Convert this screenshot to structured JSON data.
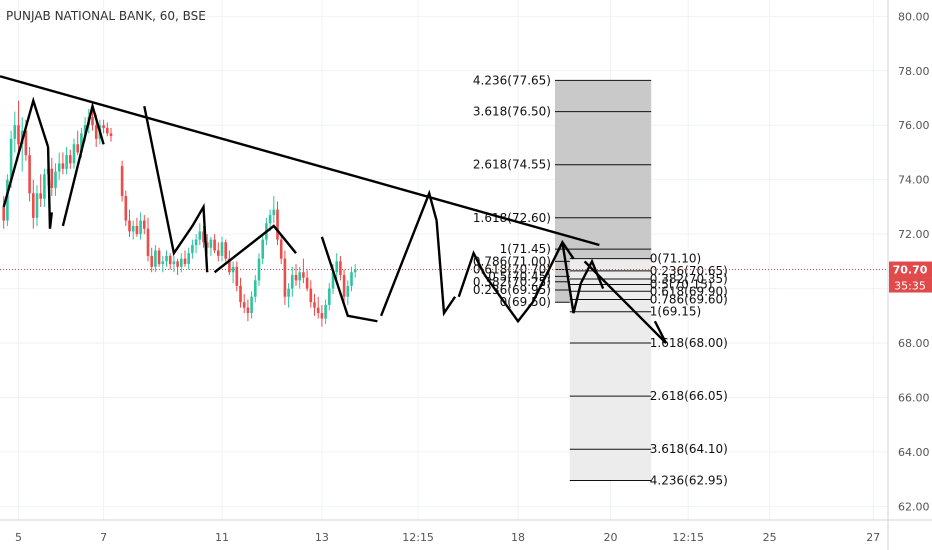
{
  "chart_data": {
    "type": "candlestick",
    "title": "PUNJAB NATIONAL BANK, 60, BSE",
    "ylim": [
      61.5,
      80.6
    ],
    "y_ticks": [
      62,
      64,
      66,
      68,
      70,
      72,
      74,
      76,
      78,
      80
    ],
    "y_tick_labels": [
      "62.00",
      "64.00",
      "66.00",
      "68.00",
      "70.00",
      "72.00",
      "74.00",
      "76.00",
      "78.00",
      "80.00"
    ],
    "x_tick_labels": [
      "5",
      "7",
      "11",
      "13",
      "12:15",
      "18",
      "20",
      "12:15",
      "25",
      "27"
    ],
    "x_tick_positions": [
      5,
      28,
      60,
      87,
      113,
      140,
      165,
      186,
      208,
      236
    ],
    "xlim": [
      0,
      240
    ],
    "last_price": {
      "value": 70.7,
      "label": "70.70",
      "color": "#e04a4a"
    },
    "countdown": {
      "label": "35:35",
      "color": "#e04a4a"
    },
    "up_color": "#2ec4a0",
    "down_color": "#ee4b4b",
    "candles": [
      [
        1,
        73.0,
        73.4,
        72.2,
        72.5
      ],
      [
        2,
        72.5,
        74.2,
        72.3,
        74.0
      ],
      [
        3,
        74.0,
        75.8,
        73.7,
        75.5
      ],
      [
        4,
        75.5,
        76.5,
        75.0,
        76.0
      ],
      [
        5,
        76.0,
        76.9,
        75.0,
        75.3
      ],
      [
        6,
        75.3,
        76.3,
        74.3,
        75.8
      ],
      [
        7,
        75.8,
        76.2,
        74.7,
        74.9
      ],
      [
        8,
        74.9,
        75.2,
        73.2,
        73.5
      ],
      [
        9,
        73.5,
        74.0,
        72.2,
        72.6
      ],
      [
        10,
        72.6,
        73.8,
        72.3,
        73.5
      ],
      [
        11,
        73.5,
        74.2,
        73.0,
        73.3
      ],
      [
        12,
        73.3,
        74.4,
        73.0,
        74.2
      ],
      [
        13,
        74.2,
        74.9,
        73.8,
        74.4
      ],
      [
        14,
        74.4,
        74.8,
        73.4,
        73.7
      ],
      [
        15,
        73.7,
        74.6,
        73.4,
        74.3
      ],
      [
        16,
        74.3,
        75.0,
        74.0,
        74.6
      ],
      [
        17,
        74.6,
        75.0,
        74.2,
        74.4
      ],
      [
        18,
        74.4,
        75.2,
        74.2,
        74.9
      ],
      [
        19,
        74.9,
        75.1,
        74.4,
        74.6
      ],
      [
        20,
        74.6,
        75.5,
        74.4,
        75.3
      ],
      [
        21,
        75.3,
        75.8,
        74.9,
        75.0
      ],
      [
        22,
        75.0,
        75.9,
        74.8,
        75.7
      ],
      [
        23,
        75.7,
        76.3,
        75.4,
        76.0
      ],
      [
        24,
        76.0,
        76.6,
        75.7,
        76.3
      ],
      [
        25,
        76.3,
        76.7,
        75.8,
        76.0
      ],
      [
        26,
        76.0,
        76.4,
        75.2,
        75.5
      ],
      [
        27,
        75.5,
        76.2,
        75.3,
        76.0
      ],
      [
        28,
        76.0,
        76.2,
        75.7,
        75.9
      ],
      [
        29,
        75.9,
        76.1,
        75.6,
        75.7
      ],
      [
        30,
        75.7,
        75.9,
        75.4,
        75.6
      ],
      [
        33,
        74.5,
        74.7,
        73.2,
        73.4
      ],
      [
        34,
        73.4,
        73.6,
        72.3,
        72.5
      ],
      [
        35,
        72.5,
        72.9,
        71.9,
        72.1
      ],
      [
        36,
        72.1,
        72.5,
        71.8,
        72.3
      ],
      [
        37,
        72.3,
        72.6,
        71.9,
        72.0
      ],
      [
        38,
        72.0,
        72.8,
        71.8,
        72.5
      ],
      [
        39,
        72.5,
        72.7,
        72.0,
        72.2
      ],
      [
        40,
        72.2,
        72.6,
        71.0,
        71.2
      ],
      [
        41,
        71.2,
        71.5,
        70.6,
        70.8
      ],
      [
        42,
        70.8,
        71.6,
        70.6,
        71.4
      ],
      [
        43,
        71.4,
        71.5,
        70.8,
        70.9
      ],
      [
        44,
        70.9,
        71.2,
        70.6,
        71.0
      ],
      [
        45,
        71.0,
        71.4,
        70.8,
        71.2
      ],
      [
        46,
        71.2,
        71.3,
        70.7,
        70.9
      ],
      [
        47,
        70.9,
        71.2,
        70.6,
        71.0
      ],
      [
        48,
        71.0,
        71.1,
        70.5,
        70.8
      ],
      [
        49,
        70.8,
        71.3,
        70.6,
        71.1
      ],
      [
        50,
        71.1,
        71.4,
        70.8,
        70.9
      ],
      [
        51,
        70.9,
        71.5,
        70.7,
        71.3
      ],
      [
        52,
        71.3,
        71.8,
        71.1,
        71.6
      ],
      [
        53,
        71.6,
        72.0,
        71.3,
        71.8
      ],
      [
        54,
        71.8,
        72.4,
        71.6,
        72.1
      ],
      [
        55,
        72.1,
        72.3,
        71.5,
        71.7
      ],
      [
        56,
        71.7,
        72.0,
        71.3,
        71.5
      ],
      [
        57,
        71.5,
        71.9,
        71.2,
        71.8
      ],
      [
        58,
        71.8,
        72.0,
        71.3,
        71.4
      ],
      [
        59,
        71.4,
        71.7,
        71.0,
        71.2
      ],
      [
        60,
        71.2,
        71.9,
        71.0,
        71.7
      ],
      [
        61,
        71.7,
        71.8,
        71.0,
        71.1
      ],
      [
        62,
        71.1,
        71.4,
        70.5,
        70.6
      ],
      [
        63,
        70.6,
        71.0,
        70.2,
        70.8
      ],
      [
        64,
        70.8,
        71.0,
        69.9,
        70.1
      ],
      [
        65,
        70.1,
        70.4,
        69.3,
        69.5
      ],
      [
        66,
        69.5,
        69.8,
        69.1,
        69.3
      ],
      [
        67,
        69.3,
        69.6,
        68.8,
        69.1
      ],
      [
        68,
        69.1,
        69.9,
        68.9,
        69.7
      ],
      [
        69,
        69.7,
        70.5,
        69.5,
        70.3
      ],
      [
        70,
        70.3,
        71.3,
        70.1,
        71.1
      ],
      [
        71,
        71.1,
        72.0,
        70.9,
        71.8
      ],
      [
        72,
        71.8,
        72.6,
        71.6,
        72.4
      ],
      [
        73,
        72.4,
        72.9,
        72.1,
        72.7
      ],
      [
        74,
        72.7,
        73.4,
        72.4,
        72.9
      ],
      [
        75,
        72.9,
        73.2,
        71.6,
        71.8
      ],
      [
        76,
        71.8,
        72.0,
        70.9,
        71.1
      ],
      [
        77,
        71.1,
        71.4,
        69.4,
        69.7
      ],
      [
        78,
        69.7,
        70.2,
        69.3,
        70.0
      ],
      [
        79,
        70.0,
        70.8,
        69.7,
        70.5
      ],
      [
        80,
        70.5,
        70.9,
        70.1,
        70.3
      ],
      [
        81,
        70.3,
        70.8,
        70.0,
        70.6
      ],
      [
        82,
        70.6,
        71.1,
        70.2,
        70.4
      ],
      [
        83,
        70.4,
        70.7,
        69.9,
        70.0
      ],
      [
        84,
        70.0,
        70.3,
        69.3,
        69.5
      ],
      [
        85,
        69.5,
        69.8,
        69.0,
        69.3
      ],
      [
        86,
        69.3,
        69.7,
        68.9,
        69.1
      ],
      [
        87,
        69.1,
        69.4,
        68.6,
        68.9
      ],
      [
        88,
        68.9,
        69.6,
        68.7,
        69.4
      ],
      [
        89,
        69.4,
        70.2,
        69.2,
        70.0
      ],
      [
        90,
        70.0,
        70.9,
        69.8,
        70.6
      ],
      [
        91,
        70.6,
        71.3,
        70.3,
        71.0
      ],
      [
        92,
        71.0,
        71.2,
        70.3,
        70.5
      ],
      [
        93,
        70.5,
        70.7,
        69.5,
        69.7
      ],
      [
        94,
        69.7,
        70.3,
        69.4,
        70.1
      ],
      [
        95,
        70.1,
        70.8,
        69.9,
        70.6
      ],
      [
        96,
        70.6,
        70.9,
        70.4,
        70.7
      ]
    ],
    "trendline": [
      [
        0,
        77.8
      ],
      [
        162,
        71.6
      ]
    ],
    "zigzag": [
      [
        [
          1,
          73.0
        ],
        [
          9,
          76.9
        ],
        [
          13,
          75.2
        ]
      ],
      [
        [
          13,
          75.2
        ],
        [
          13.5,
          72.2
        ],
        [
          14,
          72.8
        ]
      ],
      [
        [
          17,
          72.3
        ],
        [
          25,
          76.7
        ],
        [
          28,
          75.3
        ]
      ],
      [
        [
          39,
          76.7
        ],
        [
          47,
          71.3
        ],
        [
          52,
          72.3
        ]
      ],
      [
        [
          52,
          72.3
        ],
        [
          55,
          73.0
        ],
        [
          56,
          70.6
        ]
      ],
      [
        [
          58,
          70.6
        ],
        [
          74,
          72.3
        ],
        [
          80,
          71.3
        ]
      ],
      [
        [
          87,
          71.9
        ],
        [
          94,
          69.0
        ],
        [
          102,
          68.8
        ]
      ],
      [
        [
          103,
          69.0
        ],
        [
          116,
          73.5
        ],
        [
          118,
          72.5
        ]
      ],
      [
        [
          118,
          72.5
        ],
        [
          120,
          69.1
        ],
        [
          123,
          69.7
        ]
      ],
      [
        [
          124,
          69.7
        ],
        [
          128,
          71.3
        ],
        [
          131,
          70.5
        ]
      ],
      [
        [
          131,
          70.5
        ],
        [
          140,
          68.8
        ],
        [
          144,
          69.5
        ]
      ],
      [
        [
          144,
          69.5
        ],
        [
          152,
          71.7
        ],
        [
          155,
          71.1
        ]
      ],
      [
        [
          152,
          71.7
        ],
        [
          155,
          69.1
        ],
        [
          157,
          70.2
        ]
      ],
      [
        [
          157,
          70.2
        ],
        [
          160,
          71.0
        ],
        [
          163,
          70.0
        ]
      ],
      [
        [
          158,
          71.0
        ],
        [
          180,
          68.0
        ],
        [
          177,
          68.8
        ]
      ]
    ],
    "fib_upper": {
      "box_x": [
        150,
        176
      ],
      "levels": [
        {
          "label": "4.236(77.65)",
          "value": 77.65
        },
        {
          "label": "3.618(76.50)",
          "value": 76.5
        },
        {
          "label": "2.618(74.55)",
          "value": 74.55
        },
        {
          "label": "1.618(72.60)",
          "value": 72.6
        },
        {
          "label": "1(71.45)",
          "value": 71.45
        },
        {
          "label": "0.786(71.00)",
          "value": 71.0
        },
        {
          "label": "0.618(70.70)",
          "value": 70.7
        },
        {
          "label": "0.5(70.45)",
          "value": 70.45
        },
        {
          "label": "0.382(70.25)",
          "value": 70.25
        },
        {
          "label": "0.236(69.95)",
          "value": 69.95
        },
        {
          "label": "0(69.50)",
          "value": 69.5
        }
      ]
    },
    "fib_lower": {
      "box_x": [
        154,
        176
      ],
      "levels": [
        {
          "label": "0(71.10)",
          "value": 71.1
        },
        {
          "label": "0.236(70.65)",
          "value": 70.65
        },
        {
          "label": "0.382(70.35)",
          "value": 70.35
        },
        {
          "label": "0.5(70.15)",
          "value": 70.15
        },
        {
          "label": "0.618(69.90)",
          "value": 69.9
        },
        {
          "label": "0.786(69.60)",
          "value": 69.6
        },
        {
          "label": "1(69.15)",
          "value": 69.15
        },
        {
          "label": "1.618(68.00)",
          "value": 68.0
        },
        {
          "label": "2.618(66.05)",
          "value": 66.05
        },
        {
          "label": "3.618(64.10)",
          "value": 64.1
        },
        {
          "label": "4.236(62.95)",
          "value": 62.95
        }
      ]
    }
  }
}
